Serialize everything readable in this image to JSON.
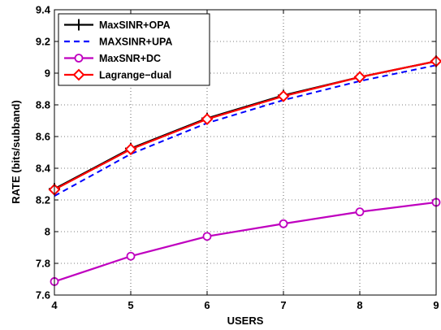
{
  "chart_data": {
    "type": "line",
    "title": "",
    "xlabel": "USERS",
    "ylabel": "RATE (bits/subband)",
    "xlim": [
      4,
      9
    ],
    "ylim": [
      7.6,
      9.4
    ],
    "x": [
      4,
      5,
      6,
      7,
      8,
      9
    ],
    "x_ticks": [
      "4",
      "5",
      "6",
      "7",
      "8",
      "9"
    ],
    "y_ticks": [
      "7.6",
      "7.8",
      "8",
      "8.2",
      "8.4",
      "8.6",
      "8.8",
      "9",
      "9.2",
      "9.4"
    ],
    "grid": true,
    "legend_position": "top-left",
    "series": [
      {
        "name": "MaxSINR+OPA",
        "color": "#000000",
        "dash": "solid",
        "marker": "plus",
        "values": [
          8.27,
          8.525,
          8.715,
          8.86,
          8.975,
          9.075
        ]
      },
      {
        "name": "MAXSINR+UPA",
        "color": "#0000ff",
        "dash": "dashed",
        "marker": "none",
        "values": [
          8.225,
          8.49,
          8.685,
          8.83,
          8.95,
          9.05
        ]
      },
      {
        "name": "MaxSNR+DC",
        "color": "#bf00bf",
        "dash": "solid",
        "marker": "circle",
        "values": [
          7.685,
          7.845,
          7.97,
          8.05,
          8.125,
          8.185
        ]
      },
      {
        "name": "Lagrange−dual",
        "color": "#ff0000",
        "dash": "solid",
        "marker": "diamond",
        "values": [
          8.265,
          8.52,
          8.71,
          8.855,
          8.975,
          9.075
        ]
      }
    ]
  }
}
